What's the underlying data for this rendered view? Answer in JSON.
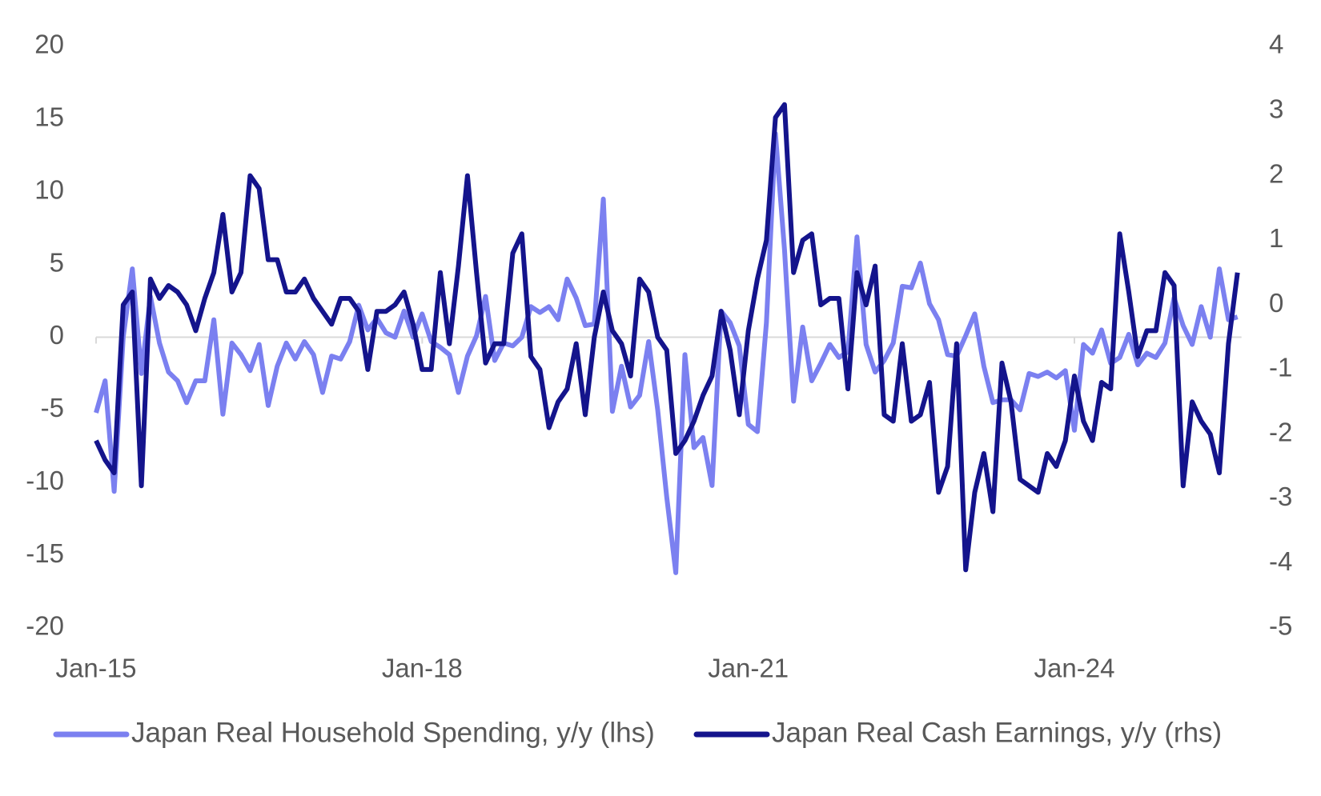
{
  "chart_data": {
    "type": "line",
    "x": [
      "Jan-15",
      "Feb-15",
      "Mar-15",
      "Apr-15",
      "May-15",
      "Jun-15",
      "Jul-15",
      "Aug-15",
      "Sep-15",
      "Oct-15",
      "Nov-15",
      "Dec-15",
      "Jan-16",
      "Feb-16",
      "Mar-16",
      "Apr-16",
      "May-16",
      "Jun-16",
      "Jul-16",
      "Aug-16",
      "Sep-16",
      "Oct-16",
      "Nov-16",
      "Dec-16",
      "Jan-17",
      "Feb-17",
      "Mar-17",
      "Apr-17",
      "May-17",
      "Jun-17",
      "Jul-17",
      "Aug-17",
      "Sep-17",
      "Oct-17",
      "Nov-17",
      "Dec-17",
      "Jan-18",
      "Feb-18",
      "Mar-18",
      "Apr-18",
      "May-18",
      "Jun-18",
      "Jul-18",
      "Aug-18",
      "Sep-18",
      "Oct-18",
      "Nov-18",
      "Dec-18",
      "Jan-19",
      "Feb-19",
      "Mar-19",
      "Apr-19",
      "May-19",
      "Jun-19",
      "Jul-19",
      "Aug-19",
      "Sep-19",
      "Oct-19",
      "Nov-19",
      "Dec-19",
      "Jan-20",
      "Feb-20",
      "Mar-20",
      "Apr-20",
      "May-20",
      "Jun-20",
      "Jul-20",
      "Aug-20",
      "Sep-20",
      "Oct-20",
      "Nov-20",
      "Dec-20",
      "Jan-21",
      "Feb-21",
      "Mar-21",
      "Apr-21",
      "May-21",
      "Jun-21",
      "Jul-21",
      "Aug-21",
      "Sep-21",
      "Oct-21",
      "Nov-21",
      "Dec-21",
      "Jan-22",
      "Feb-22",
      "Mar-22",
      "Apr-22",
      "May-22",
      "Jun-22",
      "Jul-22",
      "Aug-22",
      "Sep-22",
      "Oct-22",
      "Nov-22",
      "Dec-22",
      "Jan-23",
      "Feb-23",
      "Mar-23",
      "Apr-23",
      "May-23",
      "Jun-23",
      "Jul-23",
      "Aug-23",
      "Sep-23",
      "Oct-23",
      "Nov-23",
      "Dec-23",
      "Jan-24",
      "Feb-24",
      "Mar-24",
      "Apr-24",
      "May-24",
      "Jun-24",
      "Jul-24",
      "Aug-24",
      "Sep-24",
      "Oct-24",
      "Nov-24",
      "Dec-24",
      "Jan-25",
      "Feb-25",
      "Mar-25",
      "Apr-25",
      "May-25",
      "Jun-25",
      "Jul-25"
    ],
    "xticks": [
      "Jan-15",
      "Jan-18",
      "Jan-21",
      "Jan-24"
    ],
    "series": [
      {
        "name": "Japan Real Household Spending, y/y (lhs)",
        "color": "#7b80f0",
        "axis": "y",
        "values": [
          -5.2,
          -3,
          -10.6,
          0,
          4.7,
          -2.5,
          2.8,
          -0.4,
          -2.4,
          -3,
          -4.5,
          -3,
          -3,
          1.2,
          -5.3,
          -0.4,
          -1.2,
          -2.3,
          -0.5,
          -4.7,
          -2,
          -0.4,
          -1.5,
          -0.3,
          -1.2,
          -3.8,
          -1.3,
          -1.5,
          -0.3,
          2.2,
          0.5,
          1.3,
          0.3,
          0,
          1.8,
          0,
          1.6,
          -0.3,
          -0.7,
          -1.2,
          -3.8,
          -1.3,
          0.1,
          2.8,
          -1.6,
          -0.4,
          -0.6,
          0,
          2.1,
          1.7,
          2.1,
          1.2,
          4,
          2.7,
          0.8,
          0.9,
          9.5,
          -5.1,
          -2,
          -4.8,
          -4,
          -0.3,
          -5,
          -11,
          -16.2,
          -1.2,
          -7.6,
          -6.9,
          -10.2,
          1.8,
          1,
          -0.6,
          -6,
          -6.5,
          1,
          14,
          6,
          -4.4,
          0.7,
          -3,
          -1.8,
          -0.5,
          -1.4,
          -1,
          6.9,
          -0.5,
          -2.4,
          -1.6,
          -0.4,
          3.5,
          3.4,
          5.1,
          2.3,
          1.2,
          -1.2,
          -1.3,
          0.1,
          1.6,
          -2,
          -4.5,
          -4.3,
          -4.3,
          -5,
          -2.5,
          -2.7,
          -2.4,
          -2.8,
          -2.3,
          -6.4,
          -0.5,
          -1.1,
          0.5,
          -1.8,
          -1.4,
          0.2,
          -1.9,
          -1.1,
          -1.4,
          -0.4,
          2.7,
          0.8,
          -0.5,
          2.1,
          0,
          4.7,
          1.2,
          1.4
        ]
      },
      {
        "name": "Japan Real Cash Earnings, y/y (rhs)",
        "color": "#14148c",
        "axis": "y2",
        "values": [
          -2.1,
          -2.4,
          -2.6,
          0,
          0.2,
          -2.8,
          0.4,
          0.1,
          0.3,
          0.2,
          0,
          -0.4,
          0.1,
          0.5,
          1.4,
          0.2,
          0.5,
          2,
          1.8,
          0.7,
          0.7,
          0.2,
          0.2,
          0.4,
          0.1,
          -0.1,
          -0.3,
          0.1,
          0.1,
          -0.1,
          -1,
          -0.1,
          -0.1,
          0,
          0.2,
          -0.3,
          -1,
          -1,
          0.5,
          -0.6,
          0.6,
          2,
          0.5,
          -0.9,
          -0.6,
          -0.6,
          0.8,
          1.1,
          -0.8,
          -1,
          -1.9,
          -1.5,
          -1.3,
          -0.6,
          -1.7,
          -0.5,
          0.2,
          -0.4,
          -0.6,
          -1.1,
          0.4,
          0.2,
          -0.5,
          -0.7,
          -2.3,
          -2.1,
          -1.8,
          -1.4,
          -1.1,
          -0.1,
          -0.7,
          -1.7,
          -0.4,
          0.4,
          1,
          2.9,
          3.1,
          0.5,
          1,
          1.1,
          0,
          0.1,
          0.1,
          -1.3,
          0.5,
          0,
          0.6,
          -1.7,
          -1.8,
          -0.6,
          -1.8,
          -1.7,
          -1.2,
          -2.9,
          -2.5,
          -0.6,
          -4.1,
          -2.9,
          -2.3,
          -3.2,
          -0.9,
          -1.5,
          -2.7,
          -2.8,
          -2.9,
          -2.3,
          -2.5,
          -2.1,
          -1.1,
          -1.8,
          -2.1,
          -1.2,
          -1.3,
          1.1,
          0.2,
          -0.8,
          -0.4,
          -0.4,
          0.5,
          0.3,
          -2.8,
          -1.5,
          -1.8,
          -2,
          -2.6,
          -0.6,
          0.5
        ]
      }
    ],
    "ylim": [
      -20,
      20
    ],
    "yticks": [
      -20,
      -15,
      -10,
      -5,
      0,
      5,
      10,
      15,
      20
    ],
    "y2lim": [
      -5,
      4
    ],
    "y2ticks": [
      -5,
      -4,
      -3,
      -2,
      -1,
      0,
      1,
      2,
      3,
      4
    ],
    "grid": false,
    "legend": "bottom"
  }
}
